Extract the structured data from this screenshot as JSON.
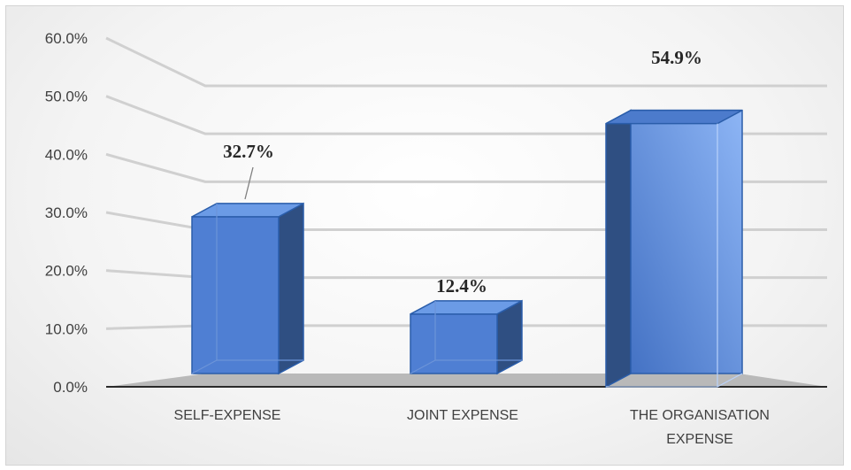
{
  "chart_data": {
    "type": "bar",
    "categories": [
      [
        "SELF-EXPENSE"
      ],
      [
        "JOINT EXPENSE"
      ],
      [
        "THE ORGANISATION",
        "EXPENSE"
      ]
    ],
    "values": [
      32.7,
      12.4,
      54.9
    ],
    "data_labels": [
      "32.7%",
      "12.4%",
      "54.9%"
    ],
    "y_ticks": [
      "0.0%",
      "10.0%",
      "20.0%",
      "30.0%",
      "40.0%",
      "50.0%",
      "60.0%"
    ],
    "ylim": [
      0,
      60
    ],
    "grid": true,
    "style": "3d-clustered-column",
    "colors": {
      "bar_front": "#4f7fd3",
      "bar_front_highlight": "#8db5f5",
      "bar_top": "#6b9be6",
      "bar_side": "#2f4f82",
      "bar_edge": "#2a5daa",
      "floor": "#b9b9b9",
      "gridline": "#d0d0d0"
    }
  }
}
